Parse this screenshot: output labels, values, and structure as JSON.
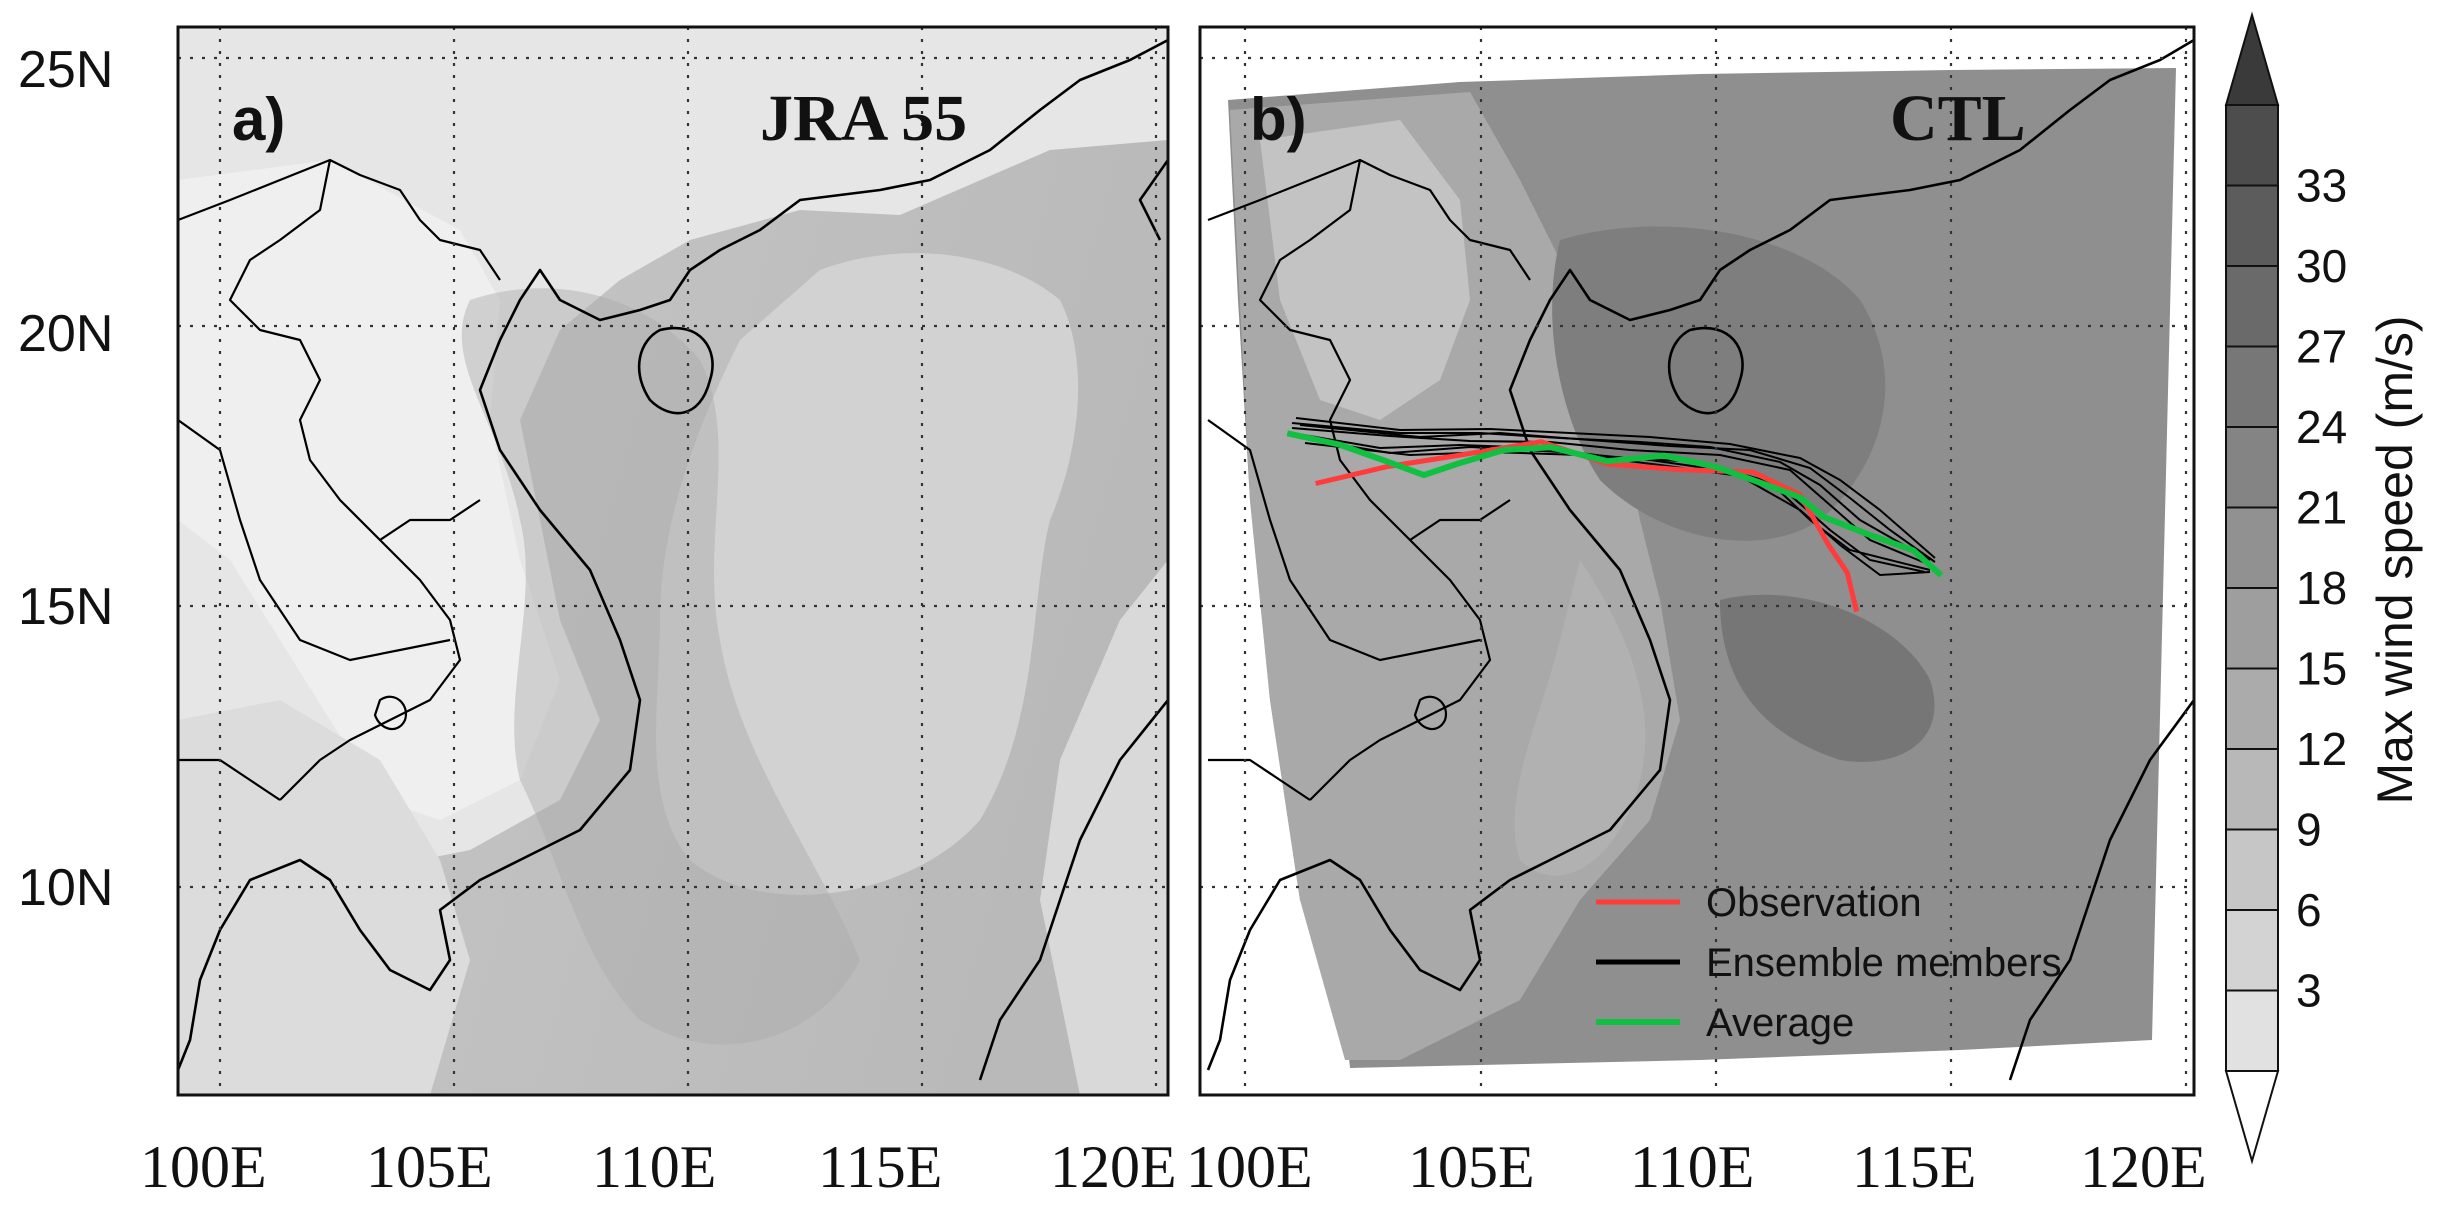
{
  "figure": {
    "lat_ticks": [
      "25N",
      "20N",
      "15N",
      "10N"
    ],
    "lon_ticks": [
      "100E",
      "105E",
      "110E",
      "115E",
      "120E"
    ]
  },
  "panel_a": {
    "letter": "a)",
    "title": "JRA 55"
  },
  "panel_b": {
    "letter": "b)",
    "title": "CTL"
  },
  "colorbar": {
    "title": "Max wind speed (m/s)",
    "levels": [
      "33",
      "30",
      "27",
      "24",
      "21",
      "18",
      "15",
      "12",
      "9",
      "6",
      "3"
    ],
    "colors": [
      "#4d4d4d",
      "#5c5c5c",
      "#6a6a6a",
      "#777777",
      "#848484",
      "#919191",
      "#9e9e9e",
      "#ababab",
      "#b8b8b8",
      "#c6c6c6",
      "#d3d3d3",
      "#e1e1e1"
    ]
  },
  "legend": {
    "items": [
      {
        "label": "Observation",
        "color": "#ff3b3b"
      },
      {
        "label": "Ensemble members",
        "color": "#000000"
      },
      {
        "label": "Average",
        "color": "#10c040"
      }
    ]
  },
  "tracks": {
    "observation": [
      [
        101.5,
        17.2
      ],
      [
        103,
        17.5
      ],
      [
        104.5,
        17.7
      ],
      [
        106.3,
        17.95
      ],
      [
        107.7,
        17.55
      ],
      [
        109.2,
        17.45
      ],
      [
        110.8,
        17.4
      ],
      [
        111.8,
        17.0
      ],
      [
        112.4,
        16.1
      ],
      [
        112.8,
        15.6
      ],
      [
        113.0,
        14.9
      ]
    ],
    "average": [
      [
        100.9,
        18.1
      ],
      [
        102,
        17.9
      ],
      [
        103,
        17.6
      ],
      [
        103.8,
        17.35
      ],
      [
        104.5,
        17.55
      ],
      [
        105.5,
        17.8
      ],
      [
        106.5,
        17.85
      ],
      [
        107.7,
        17.6
      ],
      [
        108.9,
        17.7
      ],
      [
        110,
        17.5
      ],
      [
        111,
        17.2
      ],
      [
        111.8,
        16.95
      ],
      [
        112.3,
        16.6
      ],
      [
        113.2,
        16.3
      ],
      [
        114.2,
        16.0
      ],
      [
        114.8,
        15.55
      ]
    ]
  }
}
